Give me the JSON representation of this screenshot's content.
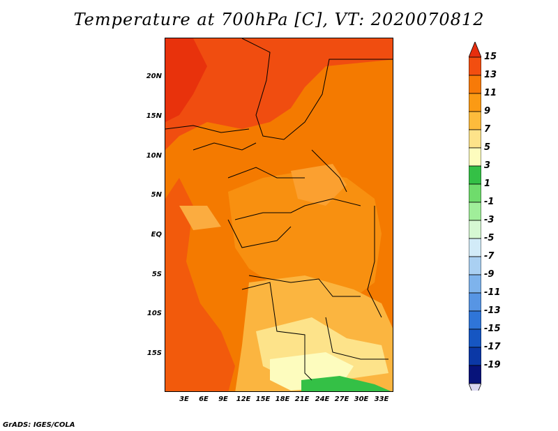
{
  "title": "Temperature at 700hPa [C], VT: 2020070812",
  "footer": "GrADS: IGES/COLA",
  "map": {
    "lat_labels": [
      "20N",
      "15N",
      "10N",
      "5N",
      "EQ",
      "5S",
      "10S",
      "15S"
    ],
    "lon_labels": [
      "3E",
      "6E",
      "9E",
      "12E",
      "15E",
      "18E",
      "21E",
      "24E",
      "27E",
      "30E",
      "33E"
    ],
    "background_color": "#f47a00"
  },
  "colorbar": {
    "labels": [
      "15",
      "13",
      "11",
      "9",
      "7",
      "5",
      "3",
      "1",
      "-1",
      "-3",
      "-5",
      "-7",
      "-9",
      "-11",
      "-13",
      "-15",
      "-17",
      "-19"
    ],
    "colors": [
      "#e72e0e",
      "#f24e10",
      "#f77a08",
      "#fb9a14",
      "#fdbb3c",
      "#fde38a",
      "#fdfcbe",
      "#34c046",
      "#6fdc6c",
      "#a0ee9a",
      "#d6f8d3",
      "#d2ebf8",
      "#aad0f2",
      "#7eb3ec",
      "#5795e4",
      "#2f75d8",
      "#1656c2",
      "#0b38a6",
      "#07137a",
      "#d8d6f0"
    ]
  }
}
